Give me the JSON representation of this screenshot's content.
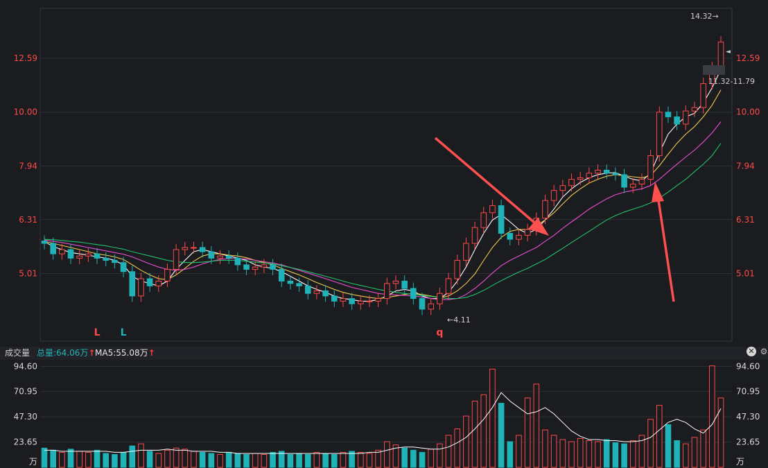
{
  "colors": {
    "background": "#1b1c20",
    "grid": "#2e3036",
    "axis_price": "#ff4a4a",
    "axis_volume": "#d8d8d8",
    "up": "#ff4a4a",
    "down": "#1fb3b8",
    "ma_white": "#ffffff",
    "ma_yellow": "#f2c94c",
    "ma_magenta": "#e84fd1",
    "ma_green": "#22c26b",
    "annotation_arrow": "#ff5050"
  },
  "price_axis": {
    "ticks": [
      "12.59",
      "10.00",
      "7.94",
      "6.31",
      "5.01"
    ],
    "tick_values": [
      12.59,
      10.0,
      7.94,
      6.31,
      5.01
    ],
    "scale": "log",
    "range": [
      3.75,
      15.6
    ]
  },
  "annotations": {
    "high_label": "14.32→",
    "low_label": "←4.11",
    "range_label": "11.32-11.79",
    "marker_arrow": "◄",
    "signals": [
      {
        "text": "L",
        "color": "#ff4a4a",
        "index": 6
      },
      {
        "text": "L",
        "color": "#1fb3b8",
        "index": 9
      },
      {
        "text": "q",
        "color": "#ff4a4a",
        "index": 45
      }
    ]
  },
  "volume_header": {
    "title": "成交量",
    "total": "总量:64.06万",
    "ma5": "MA5:55.08万",
    "up_arrow": "↑",
    "close_icon": "✕",
    "gear_icon": "⚙"
  },
  "volume_axis": {
    "ticks": [
      "94.60",
      "70.95",
      "47.30",
      "23.65"
    ],
    "tick_values": [
      94.6,
      70.95,
      47.3,
      23.65
    ],
    "unit": "万",
    "max": 100
  },
  "chart_data": {
    "type": "candlestick",
    "x": [
      0,
      1,
      2,
      3,
      4,
      5,
      6,
      7,
      8,
      9,
      10,
      11,
      12,
      13,
      14,
      15,
      16,
      17,
      18,
      19,
      20,
      21,
      22,
      23,
      24,
      25,
      26,
      27,
      28,
      29,
      30,
      31,
      32,
      33,
      34,
      35,
      36,
      37,
      38,
      39,
      40,
      41,
      42,
      43,
      44,
      45,
      46,
      47,
      48,
      49,
      50,
      51,
      52,
      53,
      54,
      55,
      56,
      57,
      58,
      59,
      60,
      61,
      62,
      63,
      64,
      65,
      66,
      67,
      68,
      69,
      70,
      71,
      72,
      73,
      74,
      75,
      76,
      77
    ],
    "close": [
      5.7,
      5.45,
      5.55,
      5.35,
      5.4,
      5.45,
      5.35,
      5.3,
      5.25,
      5.05,
      4.55,
      4.9,
      4.75,
      4.85,
      5.1,
      5.55,
      5.6,
      5.6,
      5.5,
      5.35,
      5.4,
      5.35,
      5.2,
      5.1,
      5.15,
      5.2,
      5.1,
      4.85,
      4.8,
      4.75,
      4.6,
      4.65,
      4.55,
      4.45,
      4.5,
      4.4,
      4.45,
      4.45,
      4.5,
      4.8,
      4.85,
      4.7,
      4.5,
      4.3,
      4.4,
      4.6,
      4.9,
      5.3,
      5.7,
      6.1,
      6.5,
      6.7,
      5.95,
      5.8,
      5.9,
      6.05,
      6.35,
      6.85,
      7.15,
      7.3,
      7.5,
      7.55,
      7.7,
      7.8,
      7.7,
      7.65,
      7.25,
      7.35,
      7.5,
      8.3,
      10.0,
      9.8,
      9.5,
      10.05,
      10.2,
      11.3,
      12.1,
      13.5
    ],
    "ma_white": [
      5.75,
      5.62,
      5.55,
      5.48,
      5.45,
      5.42,
      5.38,
      5.35,
      5.3,
      5.2,
      4.95,
      4.85,
      4.8,
      4.75,
      4.85,
      5.1,
      5.3,
      5.5,
      5.55,
      5.5,
      5.45,
      5.4,
      5.35,
      5.3,
      5.2,
      5.15,
      5.12,
      5.05,
      4.95,
      4.85,
      4.75,
      4.68,
      4.62,
      4.55,
      4.5,
      4.48,
      4.45,
      4.45,
      4.48,
      4.55,
      4.65,
      4.68,
      4.65,
      4.55,
      4.5,
      4.5,
      4.62,
      4.85,
      5.15,
      5.55,
      5.95,
      6.3,
      6.45,
      6.25,
      6.05,
      5.95,
      6.05,
      6.3,
      6.6,
      6.95,
      7.2,
      7.4,
      7.55,
      7.65,
      7.7,
      7.72,
      7.6,
      7.5,
      7.45,
      7.7,
      8.4,
      9.1,
      9.5,
      9.8,
      9.95,
      10.4,
      11.1,
      12.0
    ],
    "ma_yellow": [
      5.75,
      5.7,
      5.65,
      5.6,
      5.55,
      5.5,
      5.45,
      5.42,
      5.38,
      5.32,
      5.2,
      5.08,
      4.98,
      4.9,
      4.88,
      4.98,
      5.12,
      5.28,
      5.4,
      5.45,
      5.45,
      5.42,
      5.4,
      5.36,
      5.3,
      5.25,
      5.2,
      5.12,
      5.05,
      4.98,
      4.9,
      4.82,
      4.75,
      4.68,
      4.62,
      4.58,
      4.55,
      4.52,
      4.5,
      4.52,
      4.55,
      4.58,
      4.6,
      4.58,
      4.55,
      4.52,
      4.55,
      4.65,
      4.8,
      5.0,
      5.3,
      5.6,
      5.85,
      6.0,
      6.05,
      6.05,
      6.15,
      6.3,
      6.5,
      6.75,
      7.0,
      7.2,
      7.38,
      7.5,
      7.6,
      7.65,
      7.62,
      7.58,
      7.55,
      7.62,
      7.95,
      8.35,
      8.75,
      9.1,
      9.4,
      9.8,
      10.3,
      11.0
    ],
    "ma_magenta": [
      5.78,
      5.75,
      5.72,
      5.68,
      5.64,
      5.6,
      5.56,
      5.52,
      5.48,
      5.44,
      5.38,
      5.3,
      5.22,
      5.15,
      5.1,
      5.08,
      5.1,
      5.15,
      5.22,
      5.28,
      5.32,
      5.34,
      5.34,
      5.33,
      5.3,
      5.27,
      5.24,
      5.2,
      5.14,
      5.08,
      5.02,
      4.96,
      4.9,
      4.84,
      4.78,
      4.72,
      4.68,
      4.64,
      4.6,
      4.58,
      4.57,
      4.56,
      4.55,
      4.53,
      4.5,
      4.48,
      4.48,
      4.5,
      4.58,
      4.7,
      4.85,
      5.02,
      5.18,
      5.3,
      5.4,
      5.5,
      5.6,
      5.75,
      5.9,
      6.08,
      6.25,
      6.42,
      6.6,
      6.75,
      6.9,
      7.02,
      7.1,
      7.15,
      7.2,
      7.3,
      7.5,
      7.75,
      8.0,
      8.25,
      8.5,
      8.8,
      9.15,
      9.6
    ],
    "ma_green": [
      5.8,
      5.79,
      5.77,
      5.75,
      5.73,
      5.7,
      5.67,
      5.64,
      5.6,
      5.56,
      5.5,
      5.45,
      5.4,
      5.35,
      5.3,
      5.27,
      5.25,
      5.25,
      5.26,
      5.28,
      5.3,
      5.3,
      5.3,
      5.28,
      5.26,
      5.24,
      5.22,
      5.18,
      5.14,
      5.1,
      5.05,
      5.0,
      4.95,
      4.9,
      4.85,
      4.8,
      4.76,
      4.72,
      4.68,
      4.65,
      4.62,
      4.6,
      4.58,
      4.56,
      4.54,
      4.52,
      4.5,
      4.5,
      4.52,
      4.58,
      4.66,
      4.76,
      4.86,
      4.95,
      5.04,
      5.12,
      5.22,
      5.32,
      5.45,
      5.58,
      5.72,
      5.86,
      6.0,
      6.15,
      6.3,
      6.42,
      6.52,
      6.6,
      6.68,
      6.78,
      6.92,
      7.1,
      7.3,
      7.5,
      7.75,
      8.0,
      8.3,
      8.75
    ],
    "volume": [
      18,
      16,
      14,
      17,
      15,
      14,
      16,
      13,
      12,
      14,
      20,
      22,
      15,
      13,
      16,
      18,
      17,
      15,
      14,
      13,
      12,
      14,
      13,
      12,
      13,
      12,
      14,
      15,
      12,
      13,
      12,
      14,
      13,
      12,
      14,
      15,
      14,
      13,
      16,
      24,
      21,
      18,
      16,
      14,
      17,
      22,
      30,
      36,
      48,
      62,
      68,
      92,
      60,
      24,
      30,
      65,
      78,
      35,
      30,
      26,
      24,
      27,
      25,
      24,
      26,
      23,
      22,
      25,
      30,
      45,
      58,
      40,
      25,
      22,
      28,
      35,
      95,
      65
    ],
    "volume_ma5": [
      16,
      16,
      15,
      15,
      15,
      15,
      15,
      15,
      14,
      14,
      15,
      16,
      16,
      16,
      17,
      16,
      16,
      15,
      15,
      15,
      14,
      14,
      13,
      13,
      13,
      13,
      13,
      13,
      13,
      13,
      13,
      13,
      13,
      13,
      13,
      13,
      13,
      14,
      14,
      16,
      18,
      19,
      19,
      18,
      17,
      17,
      19,
      23,
      28,
      36,
      45,
      56,
      70,
      62,
      56,
      50,
      52,
      56,
      50,
      42,
      34,
      29,
      26,
      26,
      25,
      25,
      24,
      24,
      25,
      28,
      35,
      42,
      45,
      42,
      36,
      32,
      40,
      55
    ]
  }
}
